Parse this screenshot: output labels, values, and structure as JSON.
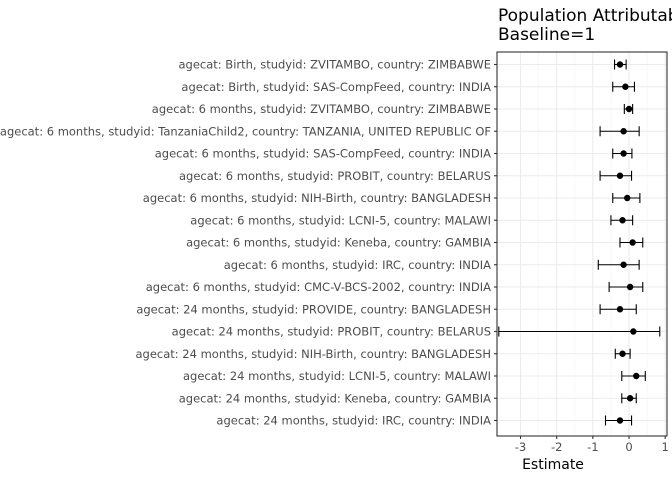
{
  "chart_data": {
    "type": "forest",
    "title_lines": [
      "Population Attributable",
      "Baseline=1"
    ],
    "xlabel": "Estimate",
    "ylabel": "",
    "xlim": [
      -3.65,
      1.05
    ],
    "xticks": [
      -3,
      -2,
      -1,
      0,
      1
    ],
    "xtick_labels": [
      "-3",
      "-2",
      "-1",
      "0",
      "1"
    ],
    "grid": true,
    "rows": [
      {
        "label": "agecat: Birth, studyid: ZVITAMBO, country: ZIMBABWE",
        "estimate": -0.25,
        "lower": -0.4,
        "upper": -0.08
      },
      {
        "label": "agecat: Birth, studyid: SAS-CompFeed, country: INDIA",
        "estimate": -0.1,
        "lower": -0.45,
        "upper": 0.15
      },
      {
        "label": "agecat: 6 months, studyid: ZVITAMBO, country: ZIMBABWE",
        "estimate": 0.0,
        "lower": -0.13,
        "upper": 0.1
      },
      {
        "label": "agecat: 6 months, studyid: TanzaniaChild2, country: TANZANIA, UNITED REPUBLIC OF",
        "estimate": -0.15,
        "lower": -0.8,
        "upper": 0.28
      },
      {
        "label": "agecat: 6 months, studyid: SAS-CompFeed, country: INDIA",
        "estimate": -0.15,
        "lower": -0.45,
        "upper": 0.08
      },
      {
        "label": "agecat: 6 months, studyid: PROBIT, country: BELARUS",
        "estimate": -0.25,
        "lower": -0.8,
        "upper": 0.07
      },
      {
        "label": "agecat: 6 months, studyid: NIH-Birth, country: BANGLADESH",
        "estimate": -0.05,
        "lower": -0.45,
        "upper": 0.3
      },
      {
        "label": "agecat: 6 months, studyid: LCNI-5, country: MALAWI",
        "estimate": -0.18,
        "lower": -0.5,
        "upper": 0.1
      },
      {
        "label": "agecat: 6 months, studyid: Keneba, country: GAMBIA",
        "estimate": 0.1,
        "lower": -0.25,
        "upper": 0.38
      },
      {
        "label": "agecat: 6 months, studyid: IRC, country: INDIA",
        "estimate": -0.15,
        "lower": -0.85,
        "upper": 0.28
      },
      {
        "label": "agecat: 6 months, studyid: CMC-V-BCS-2002, country: INDIA",
        "estimate": 0.03,
        "lower": -0.55,
        "upper": 0.38
      },
      {
        "label": "agecat: 24 months, studyid: PROVIDE, country: BANGLADESH",
        "estimate": -0.25,
        "lower": -0.8,
        "upper": 0.2
      },
      {
        "label": "agecat: 24 months, studyid: PROBIT, country: BELARUS",
        "estimate": 0.12,
        "lower": -3.6,
        "upper": 0.85
      },
      {
        "label": "agecat: 24 months, studyid: NIH-Birth, country: BANGLADESH",
        "estimate": -0.18,
        "lower": -0.38,
        "upper": 0.03
      },
      {
        "label": "agecat: 24 months, studyid: LCNI-5, country: MALAWI",
        "estimate": 0.2,
        "lower": -0.2,
        "upper": 0.45
      },
      {
        "label": "agecat: 24 months, studyid: Keneba, country: GAMBIA",
        "estimate": 0.03,
        "lower": -0.2,
        "upper": 0.2
      },
      {
        "label": "agecat: 24 months, studyid: IRC, country: INDIA",
        "estimate": -0.25,
        "lower": -0.65,
        "upper": 0.07
      }
    ]
  },
  "colors": {
    "panel_bg": "#ffffff",
    "grid_major": "#ebebeb",
    "grid_minor": "#f5f5f5",
    "panel_border": "#333333",
    "mark": "#000000"
  }
}
